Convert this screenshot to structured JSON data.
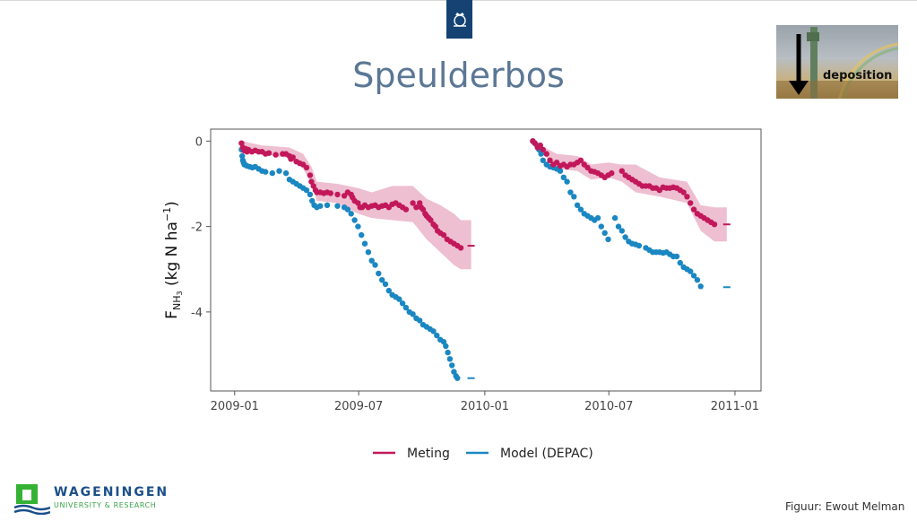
{
  "slide": {
    "title": "Speulderbos",
    "credit": "Figuur: Ewout Melman"
  },
  "photo": {
    "label": "deposition",
    "icon": "down-arrow-icon"
  },
  "logo": {
    "name": "WAGENINGEN",
    "subtitle": "UNIVERSITY & RESEARCH",
    "green": "#34b233",
    "blue": "#1b4f8a"
  },
  "chart_data": {
    "type": "scatter",
    "title": "",
    "xlabel": "",
    "ylabel_parts": {
      "main": "F",
      "sub": "NH",
      "subsub": "3",
      "unit": " (kg N ha",
      "sup": "−1",
      "close": ")"
    },
    "x_ticks": [
      "2009-01",
      "2009-07",
      "2010-01",
      "2010-07",
      "2011-01"
    ],
    "x_tick_days": [
      0,
      181,
      365,
      546,
      730
    ],
    "y_ticks": [
      "0",
      "-2",
      "-4"
    ],
    "y_tick_values": [
      0,
      -2,
      -4
    ],
    "xlim_days": [
      -35,
      768
    ],
    "ylim": [
      -5.85,
      0.28
    ],
    "legend": {
      "position": "bottom",
      "entries": [
        {
          "name": "Meting",
          "color": "#c2185b"
        },
        {
          "name": "Model (DEPAC)",
          "color": "#1a87c2"
        }
      ]
    },
    "series": [
      {
        "name": "Meting",
        "color": "#c2185b",
        "x": [
          10,
          12,
          14,
          16,
          18,
          20,
          25,
          30,
          35,
          40,
          45,
          50,
          60,
          70,
          75,
          80,
          82,
          85,
          90,
          95,
          100,
          105,
          110,
          112,
          115,
          118,
          120,
          125,
          130,
          135,
          140,
          150,
          160,
          165,
          170,
          172,
          175,
          180,
          183,
          186,
          190,
          195,
          200,
          205,
          210,
          215,
          220,
          225,
          230,
          235,
          240,
          245,
          250,
          260,
          265,
          270,
          272,
          275,
          278,
          280,
          283,
          286,
          290,
          293,
          296,
          300,
          305,
          310,
          315,
          320,
          325,
          330
        ],
        "y": [
          -0.05,
          -0.15,
          -0.22,
          -0.18,
          -0.25,
          -0.2,
          -0.25,
          -0.22,
          -0.25,
          -0.25,
          -0.3,
          -0.28,
          -0.32,
          -0.3,
          -0.3,
          -0.35,
          -0.42,
          -0.38,
          -0.48,
          -0.52,
          -0.55,
          -0.62,
          -0.8,
          -0.95,
          -1.05,
          -1.15,
          -1.2,
          -1.2,
          -1.22,
          -1.2,
          -1.22,
          -1.25,
          -1.28,
          -1.2,
          -1.25,
          -1.32,
          -1.4,
          -1.45,
          -1.55,
          -1.55,
          -1.5,
          -1.55,
          -1.52,
          -1.5,
          -1.55,
          -1.52,
          -1.5,
          -1.55,
          -1.48,
          -1.45,
          -1.5,
          -1.55,
          -1.6,
          -1.45,
          -1.55,
          -1.45,
          -1.55,
          -1.6,
          -1.7,
          -1.75,
          -1.8,
          -1.85,
          -1.95,
          -2.0,
          -2.1,
          -2.15,
          -2.2,
          -2.3,
          -2.35,
          -2.4,
          -2.45,
          -2.5
        ],
        "band_x": [
          10,
          40,
          80,
          100,
          112,
          120,
          150,
          180,
          200,
          230,
          260,
          280,
          300,
          320,
          330,
          345
        ],
        "band_upper": [
          0,
          -0.1,
          -0.15,
          -0.3,
          -0.6,
          -0.95,
          -1.0,
          -1.1,
          -1.2,
          -1.05,
          -1.05,
          -1.35,
          -1.5,
          -1.7,
          -1.85,
          -1.85
        ],
        "band_lower": [
          -0.1,
          -0.3,
          -0.4,
          -0.65,
          -1.0,
          -1.4,
          -1.45,
          -1.7,
          -1.8,
          -1.85,
          -1.9,
          -2.3,
          -2.6,
          -2.9,
          -3.0,
          -3.0
        ],
        "end_x": 345,
        "end_y": -2.45,
        "x2": [
          435,
          438,
          442,
          446,
          450,
          455,
          460,
          465,
          470,
          475,
          480,
          485,
          490,
          495,
          500,
          505,
          510,
          515,
          520,
          525,
          530,
          535,
          540,
          545,
          550,
          565,
          570,
          575,
          580,
          585,
          590,
          595,
          600,
          605,
          610,
          615,
          620,
          625,
          630,
          635,
          640,
          645,
          650,
          655,
          660,
          665,
          670,
          675,
          680,
          685,
          690,
          695,
          700
        ],
        "y2": [
          0,
          -0.05,
          -0.15,
          -0.1,
          -0.2,
          -0.3,
          -0.45,
          -0.55,
          -0.5,
          -0.58,
          -0.55,
          -0.6,
          -0.55,
          -0.55,
          -0.5,
          -0.45,
          -0.55,
          -0.62,
          -0.7,
          -0.72,
          -0.75,
          -0.8,
          -0.85,
          -0.8,
          -0.75,
          -0.7,
          -0.8,
          -0.85,
          -0.9,
          -0.95,
          -1.0,
          -1.05,
          -1.05,
          -1.05,
          -1.1,
          -1.1,
          -1.15,
          -1.08,
          -1.1,
          -1.1,
          -1.08,
          -1.1,
          -1.15,
          -1.2,
          -1.3,
          -1.45,
          -1.6,
          -1.7,
          -1.75,
          -1.8,
          -1.85,
          -1.9,
          -1.95
        ],
        "band2_x": [
          435,
          470,
          500,
          520,
          545,
          565,
          585,
          620,
          660,
          680,
          700,
          718
        ],
        "band2_upper": [
          0,
          -0.3,
          -0.35,
          -0.55,
          -0.5,
          -0.55,
          -0.55,
          -0.85,
          -0.95,
          -1.5,
          -1.55,
          -1.55
        ],
        "band2_lower": [
          -0.05,
          -0.65,
          -0.7,
          -0.9,
          -0.85,
          -0.95,
          -1.2,
          -1.3,
          -1.45,
          -2.1,
          -2.35,
          -2.35
        ],
        "end2_x": 718,
        "end2_y": -1.95
      },
      {
        "name": "Model (DEPAC)",
        "color": "#1a87c2",
        "x": [
          10,
          11,
          12,
          13,
          14,
          15,
          18,
          22,
          26,
          30,
          35,
          40,
          45,
          55,
          65,
          75,
          80,
          85,
          90,
          95,
          100,
          105,
          110,
          113,
          116,
          120,
          125,
          135,
          150,
          160,
          165,
          170,
          175,
          180,
          185,
          190,
          195,
          200,
          205,
          210,
          215,
          220,
          225,
          230,
          235,
          240,
          245,
          250,
          255,
          260,
          265,
          270,
          275,
          280,
          285,
          290,
          295,
          300,
          305,
          308,
          311,
          314,
          317,
          320,
          323,
          325
        ],
        "y": [
          -0.2,
          -0.35,
          -0.45,
          -0.5,
          -0.55,
          -0.55,
          -0.58,
          -0.6,
          -0.62,
          -0.6,
          -0.65,
          -0.7,
          -0.72,
          -0.75,
          -0.7,
          -0.75,
          -0.9,
          -0.95,
          -1.0,
          -1.05,
          -1.1,
          -1.15,
          -1.25,
          -1.4,
          -1.5,
          -1.55,
          -1.52,
          -1.5,
          -1.52,
          -1.55,
          -1.6,
          -1.7,
          -1.85,
          -2.0,
          -2.2,
          -2.4,
          -2.6,
          -2.8,
          -2.9,
          -3.1,
          -3.25,
          -3.35,
          -3.5,
          -3.6,
          -3.65,
          -3.7,
          -3.8,
          -3.9,
          -4.0,
          -4.05,
          -4.15,
          -4.2,
          -4.3,
          -4.35,
          -4.4,
          -4.45,
          -4.55,
          -4.65,
          -4.7,
          -4.8,
          -4.95,
          -5.1,
          -5.25,
          -5.4,
          -5.5,
          -5.55
        ],
        "end_x": 345,
        "end_y": -5.55,
        "x2": [
          435,
          438,
          441,
          444,
          447,
          450,
          455,
          460,
          465,
          470,
          475,
          480,
          485,
          490,
          495,
          500,
          505,
          510,
          515,
          520,
          525,
          530,
          535,
          540,
          545,
          555,
          560,
          565,
          570,
          575,
          580,
          585,
          590,
          600,
          605,
          610,
          615,
          620,
          625,
          630,
          635,
          640,
          645,
          650,
          655,
          660,
          665,
          670,
          675,
          680
        ],
        "y2": [
          0,
          -0.05,
          -0.1,
          -0.2,
          -0.3,
          -0.45,
          -0.55,
          -0.6,
          -0.62,
          -0.65,
          -0.7,
          -0.85,
          -0.95,
          -1.2,
          -1.3,
          -1.5,
          -1.6,
          -1.7,
          -1.75,
          -1.8,
          -1.85,
          -1.8,
          -2.0,
          -2.15,
          -2.3,
          -1.8,
          -2.0,
          -2.1,
          -2.25,
          -2.35,
          -2.4,
          -2.42,
          -2.45,
          -2.5,
          -2.55,
          -2.6,
          -2.6,
          -2.6,
          -2.62,
          -2.6,
          -2.65,
          -2.7,
          -2.7,
          -2.85,
          -2.95,
          -3.0,
          -3.05,
          -3.15,
          -3.25,
          -3.4
        ],
        "end2_x": 718,
        "end2_y": -3.42
      }
    ]
  }
}
